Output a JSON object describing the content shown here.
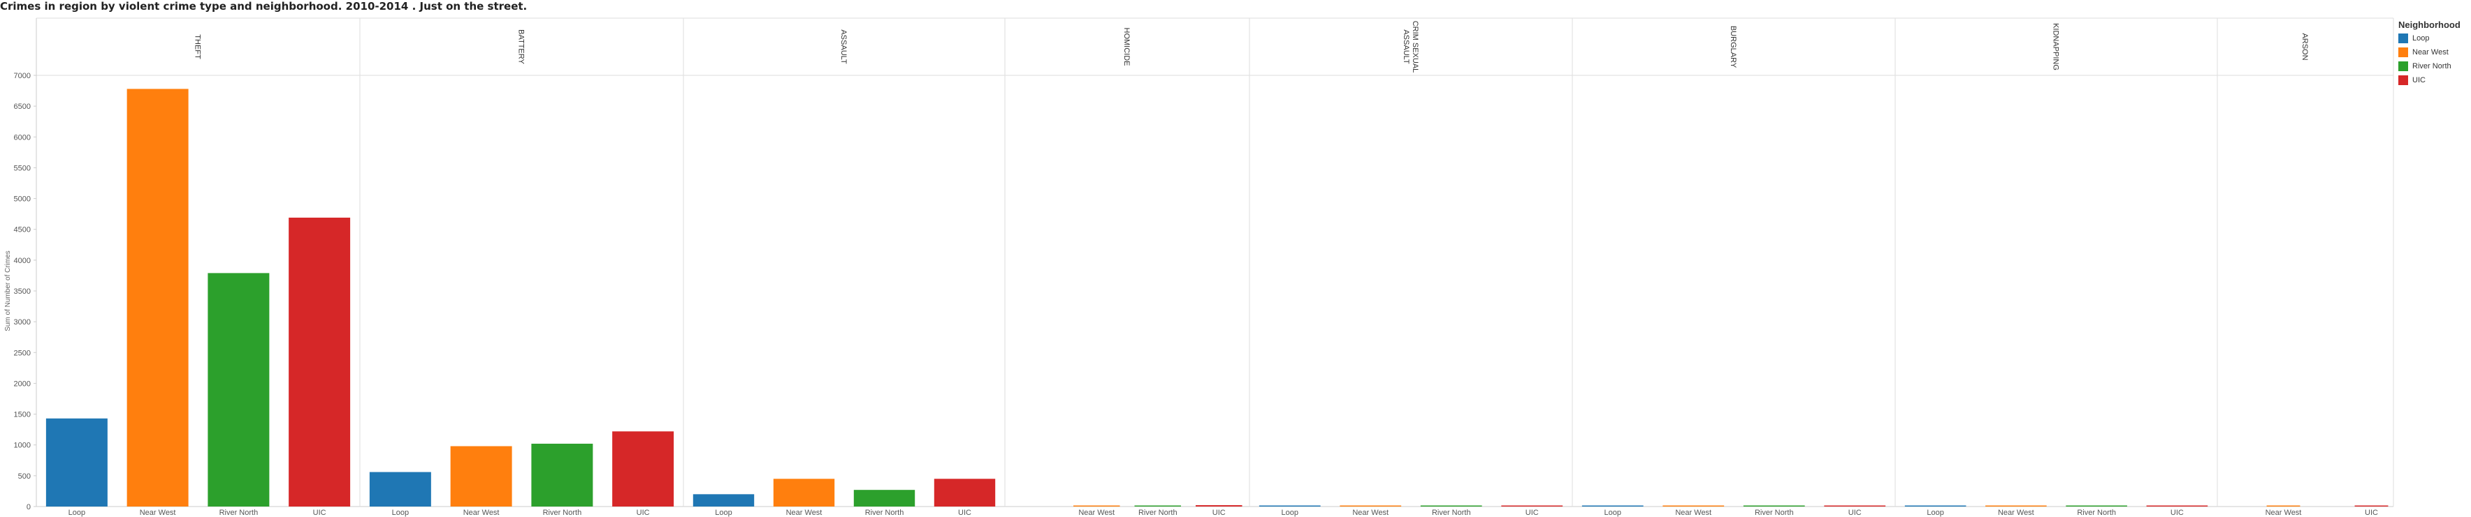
{
  "page": {
    "title": "Crimes in region by violent crime type and neighborhood. 2010-2014 .  Just on the street."
  },
  "legend": {
    "title": "Neighborhood",
    "items": [
      {
        "label": "Loop",
        "color": "#1f77b4"
      },
      {
        "label": "Near West",
        "color": "#ff7f0e"
      },
      {
        "label": "River North",
        "color": "#2ca02c"
      },
      {
        "label": "UIC",
        "color": "#d62728"
      }
    ]
  },
  "chart_data": {
    "type": "bar",
    "title": "Crimes in region by violent crime type and neighborhood. 2010-2014 .  Just on the street.",
    "ylabel": "Sum of Number of Crimes",
    "ylim": [
      0,
      7000
    ],
    "yticks": [
      0,
      500,
      1000,
      1500,
      2000,
      2500,
      3000,
      3500,
      4000,
      4500,
      5000,
      5500,
      6000,
      6500,
      7000
    ],
    "grid": false,
    "legend_placement": "right",
    "panels": [
      {
        "label": "THEFT",
        "bars": [
          {
            "category": "Loop",
            "value": 1430
          },
          {
            "category": "Near West",
            "value": 6780
          },
          {
            "category": "River North",
            "value": 3790
          },
          {
            "category": "UIC",
            "value": 4690
          }
        ]
      },
      {
        "label": "BATTERY",
        "bars": [
          {
            "category": "Loop",
            "value": 560
          },
          {
            "category": "Near West",
            "value": 980
          },
          {
            "category": "River North",
            "value": 1020
          },
          {
            "category": "UIC",
            "value": 1220
          }
        ]
      },
      {
        "label": "ASSAULT",
        "bars": [
          {
            "category": "Loop",
            "value": 200
          },
          {
            "category": "Near West",
            "value": 450
          },
          {
            "category": "River North",
            "value": 270
          },
          {
            "category": "UIC",
            "value": 450
          }
        ]
      },
      {
        "label": "HOMICIDE",
        "bars": [
          {
            "category": "Near West",
            "value": 10
          },
          {
            "category": "River North",
            "value": 8
          },
          {
            "category": "UIC",
            "value": 22
          }
        ]
      },
      {
        "label": "CRIM SEXUAL ASSAULT",
        "bars": [
          {
            "category": "Loop",
            "value": 3
          },
          {
            "category": "Near West",
            "value": 5
          },
          {
            "category": "River North",
            "value": 12
          },
          {
            "category": "UIC",
            "value": 12
          }
        ]
      },
      {
        "label": "BURGLARY",
        "bars": [
          {
            "category": "Loop",
            "value": 3
          },
          {
            "category": "Near West",
            "value": 4
          },
          {
            "category": "River North",
            "value": 12
          },
          {
            "category": "UIC",
            "value": 14
          }
        ]
      },
      {
        "label": "KIDNAPPING",
        "bars": [
          {
            "category": "Loop",
            "value": 3
          },
          {
            "category": "Near West",
            "value": 14
          },
          {
            "category": "River North",
            "value": 3
          },
          {
            "category": "UIC",
            "value": 3
          }
        ]
      },
      {
        "label": "ARSON",
        "bars": [
          {
            "category": "Near West",
            "value": 3
          },
          {
            "category": "UIC",
            "value": 3
          }
        ]
      }
    ]
  }
}
